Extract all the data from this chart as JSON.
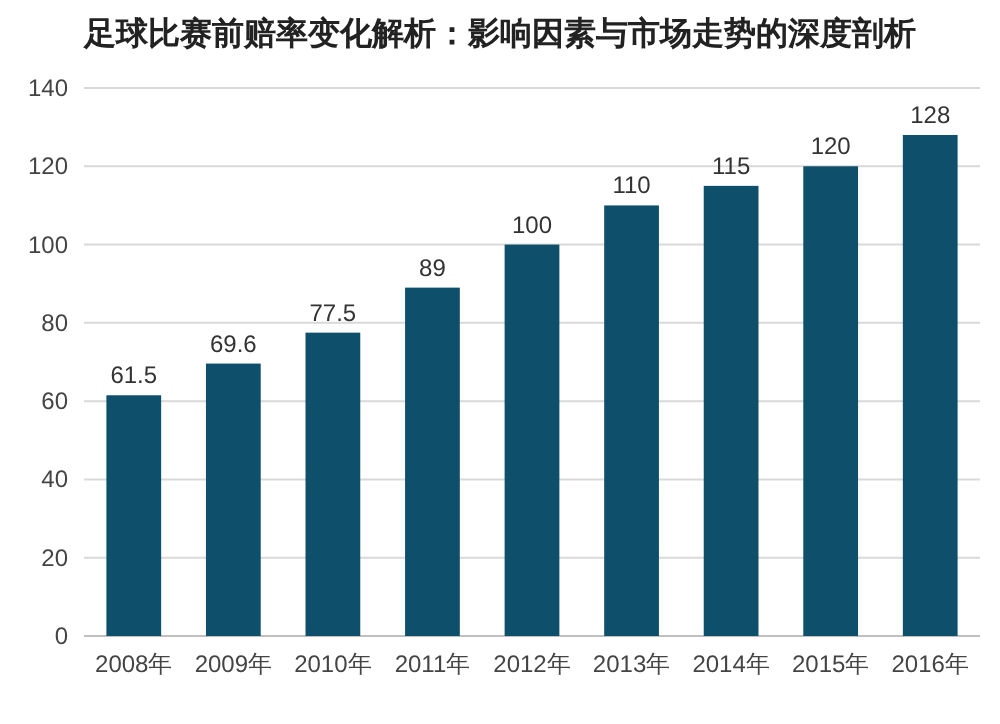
{
  "chart_data": {
    "type": "bar",
    "title": "足球比赛前赔率变化解析：影响因素与市场走势的深度剖析",
    "categories": [
      "2008年",
      "2009年",
      "2010年",
      "2011年",
      "2012年",
      "2013年",
      "2014年",
      "2015年",
      "2016年"
    ],
    "values": [
      61.5,
      69.6,
      77.5,
      89,
      100,
      110,
      115,
      120,
      128
    ],
    "color": "#0e4f6c",
    "ylim": [
      0,
      140
    ],
    "yticks": [
      0,
      20,
      40,
      60,
      80,
      100,
      120,
      140
    ],
    "grid": "y",
    "data_labels": true
  }
}
